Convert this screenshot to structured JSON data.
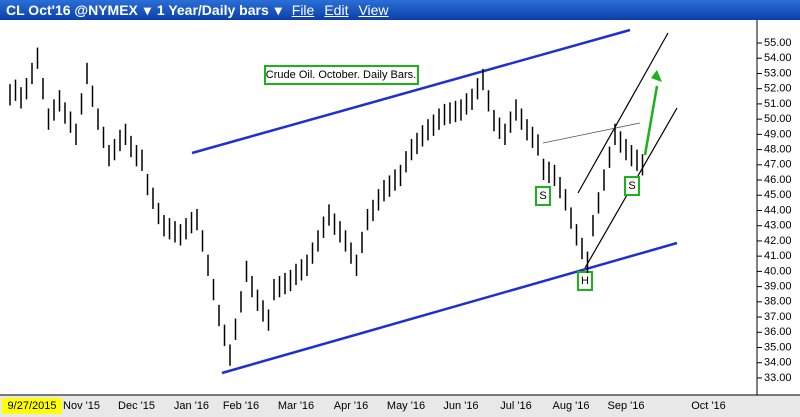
{
  "window": {
    "symbol": "CL Oct'16 @NYMEX",
    "period": "1 Year/Daily bars",
    "menu": [
      "File",
      "Edit",
      "View"
    ]
  },
  "chart_data": {
    "type": "ohlc",
    "color": "#000000",
    "annotations": [
      "Crude Oil. October. Daily Bars.",
      "S",
      "H",
      "S"
    ],
    "categories": [
      null,
      null,
      null,
      null,
      "9/27/2015",
      null,
      null,
      null,
      null,
      null,
      null,
      null,
      null,
      "Nov '15",
      null,
      null,
      null,
      null,
      null,
      null,
      null,
      null,
      null,
      "Dec '15",
      null,
      null,
      null,
      null,
      null,
      null,
      null,
      null,
      null,
      "Jan '16",
      null,
      null,
      null,
      null,
      null,
      null,
      null,
      null,
      "Feb '16",
      null,
      null,
      null,
      null,
      null,
      null,
      null,
      null,
      null,
      "Mar '16",
      null,
      null,
      null,
      null,
      null,
      null,
      null,
      null,
      null,
      "Apr '16",
      null,
      null,
      null,
      null,
      null,
      null,
      null,
      null,
      null,
      "May '16",
      null,
      null,
      null,
      null,
      null,
      null,
      null,
      null,
      null,
      "Jun '16",
      null,
      null,
      null,
      null,
      null,
      null,
      null,
      null,
      null,
      "Jul '16",
      null,
      null,
      null,
      null,
      null,
      null,
      null,
      null,
      null,
      "Aug '16",
      null,
      null,
      null,
      null,
      null,
      null,
      null,
      null,
      null,
      "Sep '16",
      null,
      null,
      null,
      null,
      null,
      null,
      null,
      null,
      null,
      null,
      null,
      null,
      null,
      null,
      "Oct '16"
    ],
    "high": [
      52.3,
      52.6,
      52.1,
      52.7,
      53.7,
      54.7,
      52.7,
      50.7,
      51.3,
      51.9,
      51.1,
      50.5,
      49.7,
      51.7,
      53.7,
      52.2,
      50.7,
      49.5,
      48.3,
      48.7,
      49.3,
      49.7,
      48.9,
      48.3,
      48.0,
      46.4,
      45.5,
      44.5,
      43.7,
      43.5,
      43.3,
      43.1,
      43.5,
      43.9,
      44.1,
      42.7,
      41.1,
      39.5,
      37.8,
      36.5,
      35.2,
      36.9,
      38.7,
      40.7,
      39.7,
      38.8,
      38.1,
      37.5,
      39.5,
      39.7,
      39.9,
      40.1,
      40.5,
      40.8,
      41.1,
      41.9,
      42.7,
      43.6,
      44.4,
      43.8,
      43.3,
      42.7,
      41.9,
      41.1,
      42.6,
      44.1,
      44.7,
      45.4,
      46.0,
      46.3,
      46.7,
      47.0,
      47.9,
      48.7,
      49.1,
      49.6,
      50.0,
      50.3,
      50.7,
      51.0,
      51.1,
      51.2,
      51.3,
      51.7,
      52.0,
      52.7,
      53.3,
      51.9,
      50.6,
      50.1,
      49.7,
      50.5,
      51.3,
      50.7,
      50.0,
      49.5,
      49.0,
      47.4,
      47.2,
      47.0,
      46.2,
      45.4,
      44.2,
      43.1,
      42.2,
      41.3,
      43.7,
      45.2,
      46.7,
      48.2,
      49.7,
      49.2,
      48.7,
      48.3,
      48.0,
      47.7,
      null,
      null,
      null,
      null,
      null,
      null,
      null,
      null,
      null,
      null,
      null,
      null
    ],
    "low": [
      50.9,
      51.2,
      50.7,
      51.3,
      52.3,
      53.3,
      51.3,
      49.3,
      49.9,
      50.5,
      49.7,
      49.1,
      48.3,
      50.3,
      52.3,
      50.8,
      49.3,
      48.1,
      46.9,
      47.3,
      47.9,
      48.3,
      47.5,
      46.9,
      46.6,
      45.0,
      44.1,
      43.1,
      42.3,
      42.1,
      41.9,
      41.7,
      42.1,
      42.5,
      42.7,
      41.3,
      39.7,
      38.1,
      36.4,
      35.1,
      33.8,
      35.5,
      37.3,
      39.3,
      38.3,
      37.4,
      36.7,
      36.1,
      38.1,
      38.3,
      38.5,
      38.7,
      39.1,
      39.4,
      39.7,
      40.5,
      41.3,
      42.2,
      43.0,
      42.4,
      41.9,
      41.3,
      40.5,
      39.7,
      41.2,
      42.7,
      43.3,
      44.0,
      44.6,
      44.9,
      45.3,
      45.6,
      46.5,
      47.3,
      47.7,
      48.2,
      48.6,
      48.9,
      49.3,
      49.6,
      49.7,
      49.8,
      49.9,
      50.3,
      50.6,
      51.3,
      51.9,
      50.5,
      49.2,
      48.7,
      48.3,
      49.1,
      49.9,
      49.3,
      48.6,
      48.1,
      47.6,
      46.0,
      45.8,
      45.6,
      44.8,
      44.0,
      42.8,
      41.7,
      40.8,
      39.9,
      42.3,
      43.8,
      45.3,
      46.8,
      48.3,
      47.8,
      47.3,
      46.9,
      46.6,
      46.3,
      null,
      null,
      null,
      null,
      null,
      null,
      null,
      null,
      null,
      null,
      null,
      null
    ],
    "ylim": [
      31.88,
      56.38
    ],
    "yticks": [
      {
        "value": 33,
        "label": "33.00"
      },
      {
        "value": 34,
        "label": "34.00"
      },
      {
        "value": 35,
        "label": "35.00"
      },
      {
        "value": 36,
        "label": "36.00"
      },
      {
        "value": 37,
        "label": "37.00"
      },
      {
        "value": 38,
        "label": "38.00"
      },
      {
        "value": 39,
        "label": "39.00"
      },
      {
        "value": 40,
        "label": "40.00"
      },
      {
        "value": 41,
        "label": "41.00"
      },
      {
        "value": 42,
        "label": "42.00"
      },
      {
        "value": 43,
        "label": "43.00"
      },
      {
        "value": 44,
        "label": "44.00"
      },
      {
        "value": 45,
        "label": "45.00"
      },
      {
        "value": 46,
        "label": "46.00"
      },
      {
        "value": 47,
        "label": "47.00"
      },
      {
        "value": 48,
        "label": "48.00"
      },
      {
        "value": 49,
        "label": "49.00"
      },
      {
        "value": 50,
        "label": "50.00"
      },
      {
        "value": 51,
        "label": "51.00"
      },
      {
        "value": 52,
        "label": "52.00"
      },
      {
        "value": 53,
        "label": "53.00"
      },
      {
        "value": 54,
        "label": "54.00"
      },
      {
        "value": 55,
        "label": "55.00"
      }
    ]
  }
}
